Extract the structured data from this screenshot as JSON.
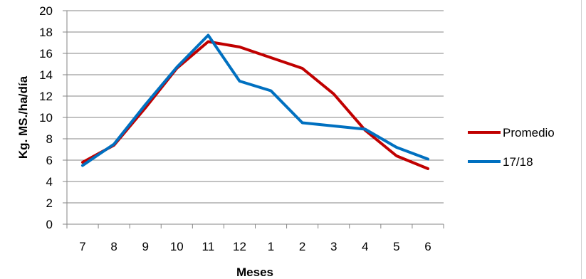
{
  "chart_data": {
    "type": "line",
    "categories": [
      "7",
      "8",
      "9",
      "10",
      "11",
      "12",
      "1",
      "2",
      "3",
      "4",
      "5",
      "6"
    ],
    "series": [
      {
        "name": "Promedio",
        "color": "#C00000",
        "values": [
          5.8,
          7.4,
          10.9,
          14.6,
          17.1,
          16.6,
          15.6,
          14.6,
          12.2,
          8.8,
          6.4,
          5.2
        ]
      },
      {
        "name": "17/18",
        "color": "#0070C0",
        "values": [
          5.5,
          7.5,
          11.2,
          14.7,
          17.7,
          13.4,
          12.5,
          9.5,
          9.2,
          8.9,
          7.2,
          6.1
        ]
      }
    ],
    "xlabel": "Meses",
    "ylabel": "Kg. MS./ha/día",
    "ylim": [
      0,
      20
    ],
    "yticks": [
      0,
      2,
      4,
      6,
      8,
      10,
      12,
      14,
      16,
      18,
      20
    ],
    "grid": true,
    "legend_position": "right"
  }
}
